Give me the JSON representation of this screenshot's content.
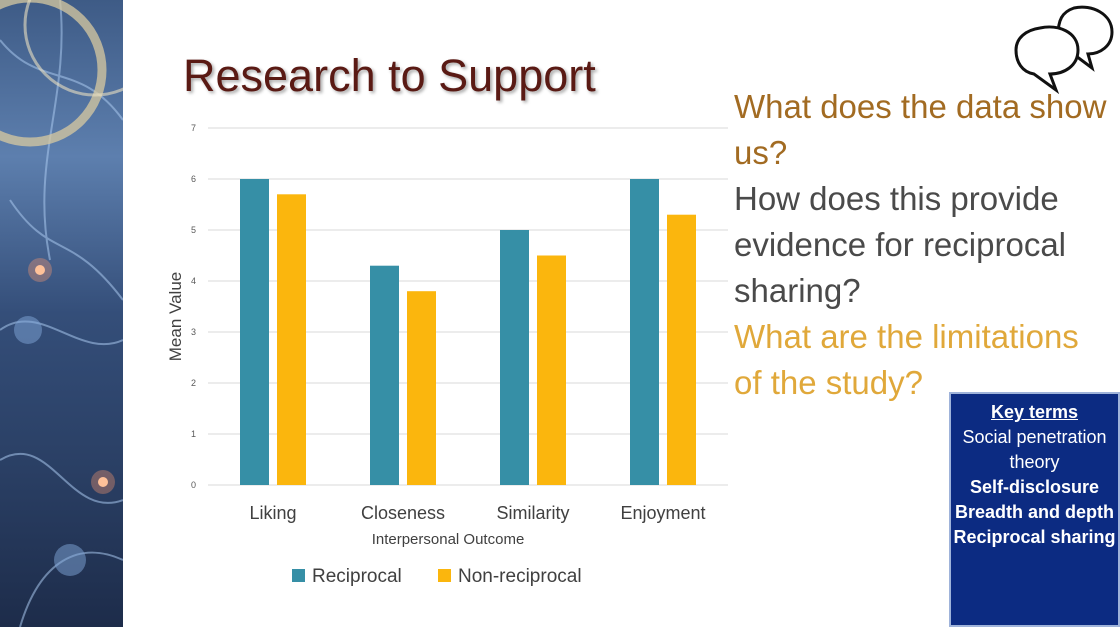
{
  "slide": {
    "title": "Research to Support"
  },
  "questions": [
    {
      "text": "What does the data show us?",
      "color": "#a26b22"
    },
    {
      "text": "How does this provide evidence for reciprocal sharing?",
      "color": "#4a4a4a"
    },
    {
      "text": "What are the limitations of the study?",
      "color": "#e0a83a"
    }
  ],
  "key_terms": {
    "title": "Key terms",
    "items": [
      {
        "text": "Social penetration theory",
        "bold": false
      },
      {
        "text": "Self-disclosure",
        "bold": true
      },
      {
        "text": "Breadth and depth",
        "bold": true
      },
      {
        "text": "Reciprocal sharing",
        "bold": true
      }
    ],
    "background": "#0c2b82"
  },
  "icons": {
    "speech": "speech-bubbles-icon"
  },
  "chart_data": {
    "type": "bar",
    "categories": [
      "Liking",
      "Closeness",
      "Similarity",
      "Enjoyment"
    ],
    "series": [
      {
        "name": "Reciprocal",
        "values": [
          6.0,
          4.3,
          5.0,
          6.0
        ],
        "color": "#368fa6"
      },
      {
        "name": "Non-reciprocal",
        "values": [
          5.7,
          3.8,
          4.5,
          5.3
        ],
        "color": "#fbb60d"
      }
    ],
    "xlabel": "Interpersonal Outcome",
    "ylabel": "Mean Value",
    "ylim": [
      0,
      7
    ],
    "yticks": [
      "0",
      "1",
      "2",
      "3",
      "4",
      "5",
      "6",
      "7"
    ],
    "grid": true,
    "legend_position": "bottom"
  }
}
